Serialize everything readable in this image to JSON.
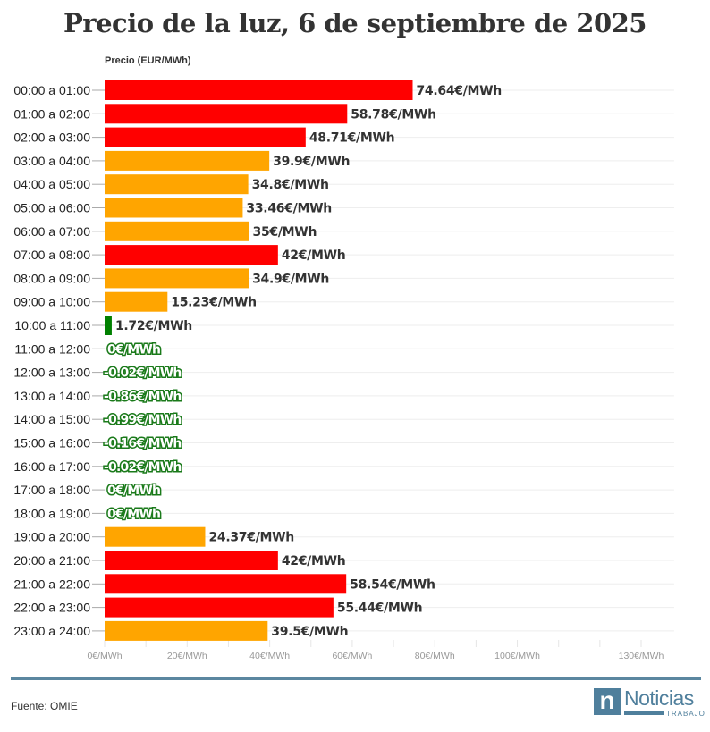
{
  "chart_data": {
    "type": "bar",
    "orientation": "horizontal",
    "title": "Precio de la luz, 6 de septiembre de 2025",
    "ylabel": "Precio (EUR/MWh)",
    "xlim": [
      0,
      138
    ],
    "xticks": [
      0,
      20,
      40,
      60,
      80,
      100,
      130
    ],
    "xtick_labels": [
      "0€/MWh",
      "20€/MWh",
      "40€/MWh",
      "60€/MWh",
      "80€/MWh",
      "100€/MWh",
      "130€/MWh"
    ],
    "grid": true,
    "categories": [
      "00:00 a 01:00",
      "01:00 a 02:00",
      "02:00 a 03:00",
      "03:00 a 04:00",
      "04:00 a 05:00",
      "05:00 a 06:00",
      "06:00 a 07:00",
      "07:00 a 08:00",
      "08:00 a 09:00",
      "09:00 a 10:00",
      "10:00 a 11:00",
      "11:00 a 12:00",
      "12:00 a 13:00",
      "13:00 a 14:00",
      "14:00 a 15:00",
      "15:00 a 16:00",
      "16:00 a 17:00",
      "17:00 a 18:00",
      "18:00 a 19:00",
      "19:00 a 20:00",
      "20:00 a 21:00",
      "21:00 a 22:00",
      "22:00 a 23:00",
      "23:00 a 24:00"
    ],
    "values": [
      74.64,
      58.78,
      48.71,
      39.9,
      34.8,
      33.46,
      35,
      42,
      34.9,
      15.23,
      1.72,
      0,
      -0.02,
      -0.86,
      -0.99,
      -0.16,
      -0.02,
      0,
      0,
      24.37,
      42,
      58.54,
      55.44,
      39.5
    ],
    "data_labels": [
      "74.64€/MWh",
      "58.78€/MWh",
      "48.71€/MWh",
      "39.9€/MWh",
      "34.8€/MWh",
      "33.46€/MWh",
      "35€/MWh",
      "42€/MWh",
      "34.9€/MWh",
      "15.23€/MWh",
      "1.72€/MWh",
      "0€/MWh",
      "-0.02€/MWh",
      "-0.86€/MWh",
      "-0.99€/MWh",
      "-0.16€/MWh",
      "-0.02€/MWh",
      "0€/MWh",
      "0€/MWh",
      "24.37€/MWh",
      "42€/MWh",
      "58.54€/MWh",
      "55.44€/MWh",
      "39.5€/MWh"
    ],
    "colors": {
      "high": "#ff0000",
      "mid": "#ffa500",
      "low": "#008000"
    }
  },
  "footer": {
    "source": "Fuente: OMIE",
    "logo_text": "Noticias",
    "logo_sub": "TRABAJO"
  }
}
